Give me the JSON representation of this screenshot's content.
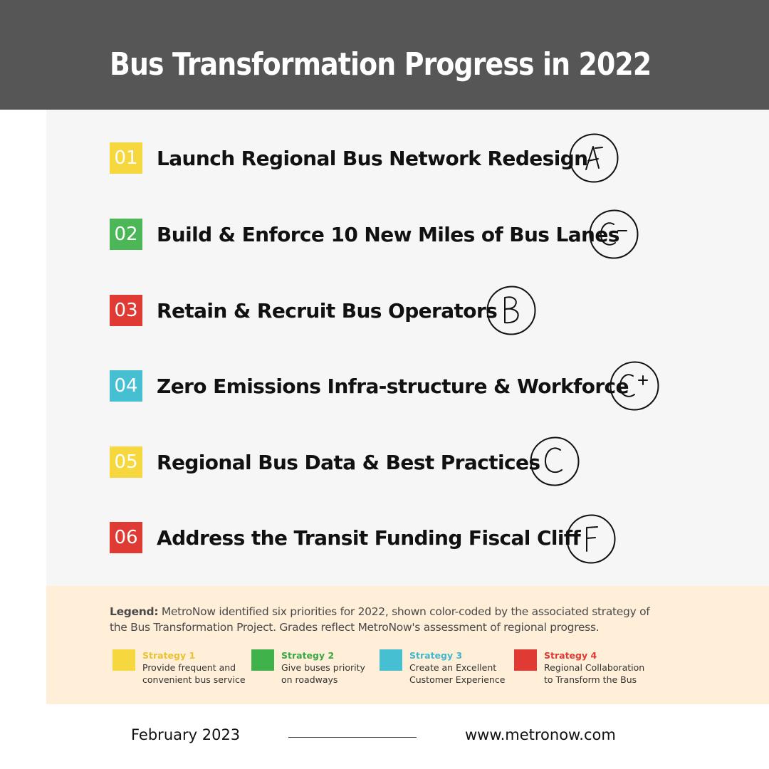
{
  "header": {
    "title": "Bus Transformation Progress in 2022"
  },
  "priorities": [
    {
      "number": "01",
      "title": "Launch Regional Bus Network Redesign",
      "grade": "A-",
      "color": "#f6d73e"
    },
    {
      "number": "02",
      "title": "Build & Enforce 10 New Miles of Bus Lanes",
      "grade": "C-",
      "color": "#4bb756"
    },
    {
      "number": "03",
      "title": "Retain & Recruit Bus Operators",
      "grade": "B",
      "color": "#e03a35"
    },
    {
      "number": "04",
      "title": "Zero Emissions Infra-structure & Workforce",
      "grade": "C+",
      "color": "#46bfd3"
    },
    {
      "number": "05",
      "title": "Regional Bus Data & Best Practices",
      "grade": "C",
      "color": "#f6d73e"
    },
    {
      "number": "06",
      "title": "Address the Transit Funding Fiscal Cliff",
      "grade": "F",
      "color": "#e03a35"
    }
  ],
  "legend": {
    "label": "Legend:",
    "text": " MetroNow identified six priorities for 2022, shown color-coded by the associated strategy of the Bus Transformation Project. Grades reflect MetroNow's assessment of regional progress.",
    "strategies": [
      {
        "name": "Strategy 1",
        "description": "Provide frequent and convenient bus service",
        "color": "#f6d73e",
        "label_color": "#e9c233"
      },
      {
        "name": "Strategy 2",
        "description": "Give buses priority on roadways",
        "color": "#3fb34a",
        "label_color": "#3aa844"
      },
      {
        "name": "Strategy 3",
        "description": "Create an Excellent Customer Experience",
        "color": "#46bfd3",
        "label_color": "#43b7cb"
      },
      {
        "name": "Strategy 4",
        "description": "Regional Collaboration to Transform the Bus",
        "color": "#e03a35",
        "label_color": "#e03a35"
      }
    ]
  },
  "footer": {
    "date": "February 2023",
    "website": "www.metronow.com"
  }
}
